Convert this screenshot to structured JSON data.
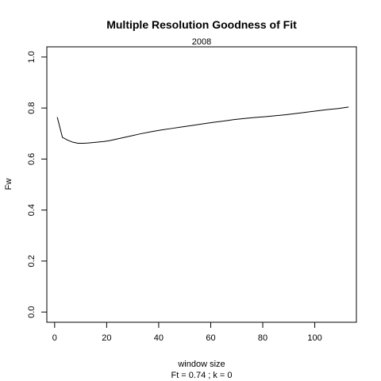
{
  "chart_data": {
    "type": "line",
    "title": "Multiple Resolution Goodness of Fit",
    "subtitle": "2008",
    "xlabel": "window size",
    "ylabel": "Fw",
    "footnote": "Ft = 0.74 ; k =  0",
    "xlim": [
      -3,
      116
    ],
    "ylim": [
      -0.04,
      1.04
    ],
    "xticks": [
      0,
      20,
      40,
      60,
      80,
      100
    ],
    "xtick_labels": [
      "0",
      "20",
      "40",
      "60",
      "80",
      "100"
    ],
    "yticks": [
      0.0,
      0.2,
      0.4,
      0.6,
      0.8,
      1.0
    ],
    "ytick_labels": [
      "0.0",
      "0.2",
      "0.4",
      "0.6",
      "0.8",
      "1.0"
    ],
    "grid": false,
    "legend": "none",
    "series": [
      {
        "x": [
          1,
          3,
          5,
          7,
          9,
          11,
          13,
          15,
          17,
          19,
          21,
          25,
          29,
          33,
          37,
          41,
          45,
          49,
          53,
          57,
          61,
          65,
          69,
          73,
          77,
          81,
          85,
          89,
          93,
          97,
          101,
          105,
          109,
          113
        ],
        "values": [
          0.764,
          0.685,
          0.674,
          0.666,
          0.662,
          0.662,
          0.663,
          0.665,
          0.667,
          0.669,
          0.672,
          0.681,
          0.69,
          0.699,
          0.707,
          0.714,
          0.72,
          0.726,
          0.732,
          0.738,
          0.744,
          0.749,
          0.755,
          0.759,
          0.763,
          0.766,
          0.77,
          0.774,
          0.779,
          0.784,
          0.789,
          0.794,
          0.798,
          0.804
        ]
      }
    ]
  }
}
